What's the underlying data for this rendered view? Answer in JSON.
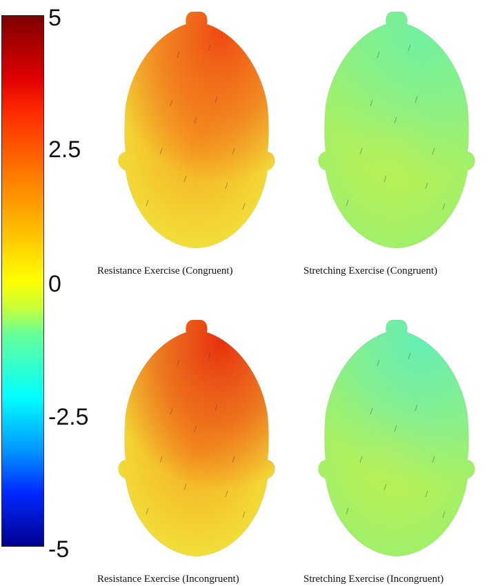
{
  "colorbar": {
    "ticks": [
      "5",
      "2.5",
      "0",
      "-2.5",
      "-5"
    ],
    "range": [
      -5,
      5
    ]
  },
  "panels": [
    {
      "caption": "Resistance Exercise (Congruent)",
      "base_color": "#f2e13a",
      "frontal_color": "#f04a12",
      "mid_color": "#f6a01e"
    },
    {
      "caption": "Stretching Exercise (Congruent)",
      "base_color": "#9ff06a",
      "frontal_color": "#72f0a0",
      "mid_color": "#c8f048"
    },
    {
      "caption": "Resistance Exercise (Incongruent)",
      "base_color": "#f2e13a",
      "frontal_color": "#e8300e",
      "mid_color": "#f6a01e"
    },
    {
      "caption": "Stretching Exercise (Incongruent)",
      "base_color": "#9ff06a",
      "frontal_color": "#66eeb4",
      "mid_color": "#c8f048"
    }
  ]
}
